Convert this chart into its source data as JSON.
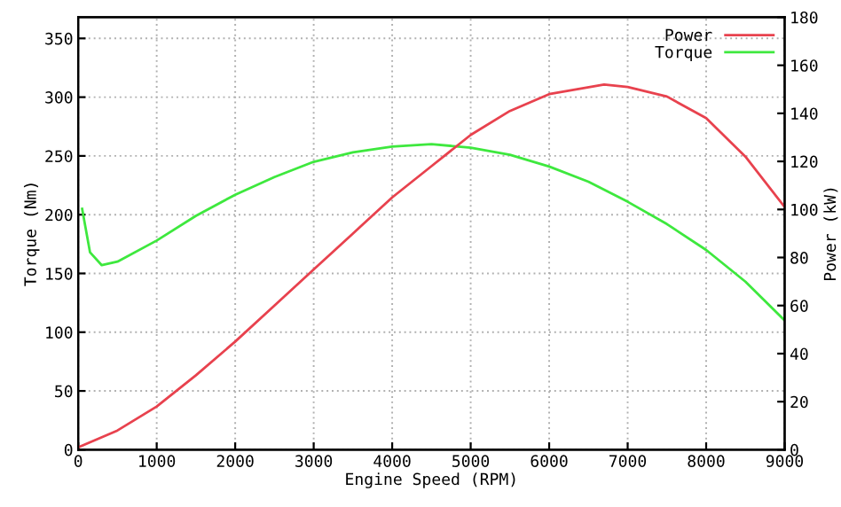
{
  "chart_data": {
    "type": "line",
    "xlabel": "Engine Speed (RPM)",
    "ylabel": "Torque (Nm)",
    "y2label": "Power (kW)",
    "xlim": [
      0,
      9000
    ],
    "xticks": [
      0,
      1000,
      2000,
      3000,
      4000,
      5000,
      6000,
      7000,
      8000,
      9000
    ],
    "ylim": [
      0,
      368
    ],
    "yticks": [
      0,
      50,
      100,
      150,
      200,
      250,
      300,
      350
    ],
    "y2lim": [
      0,
      180
    ],
    "y2ticks": [
      0,
      20,
      40,
      60,
      80,
      100,
      120,
      140,
      160,
      180
    ],
    "grid": true,
    "legend": "top right",
    "marker": "none",
    "line_style": "solid",
    "series": [
      {
        "name": "Power",
        "color": "#e8424e",
        "axis": "y2",
        "x": [
          0,
          500,
          1000,
          1500,
          2000,
          2500,
          3000,
          3500,
          4000,
          4500,
          5000,
          5500,
          6000,
          6700,
          7000,
          7500,
          8000,
          8500,
          9000
        ],
        "values": [
          1,
          8,
          18,
          31,
          45,
          60,
          75,
          90,
          105,
          118,
          131,
          141,
          148,
          152,
          151,
          147,
          138,
          122,
          101
        ]
      },
      {
        "name": "Torque",
        "color": "#3ee83e",
        "axis": "y",
        "x": [
          50,
          150,
          300,
          500,
          1000,
          1500,
          2000,
          2500,
          3000,
          3500,
          4000,
          4500,
          5000,
          5500,
          6000,
          6500,
          7000,
          7500,
          8000,
          8500,
          9000
        ],
        "values": [
          205,
          168,
          157,
          160,
          178,
          199,
          217,
          232,
          245,
          253,
          258,
          260,
          257,
          251,
          241,
          228,
          211,
          192,
          170,
          143,
          110
        ]
      }
    ]
  }
}
